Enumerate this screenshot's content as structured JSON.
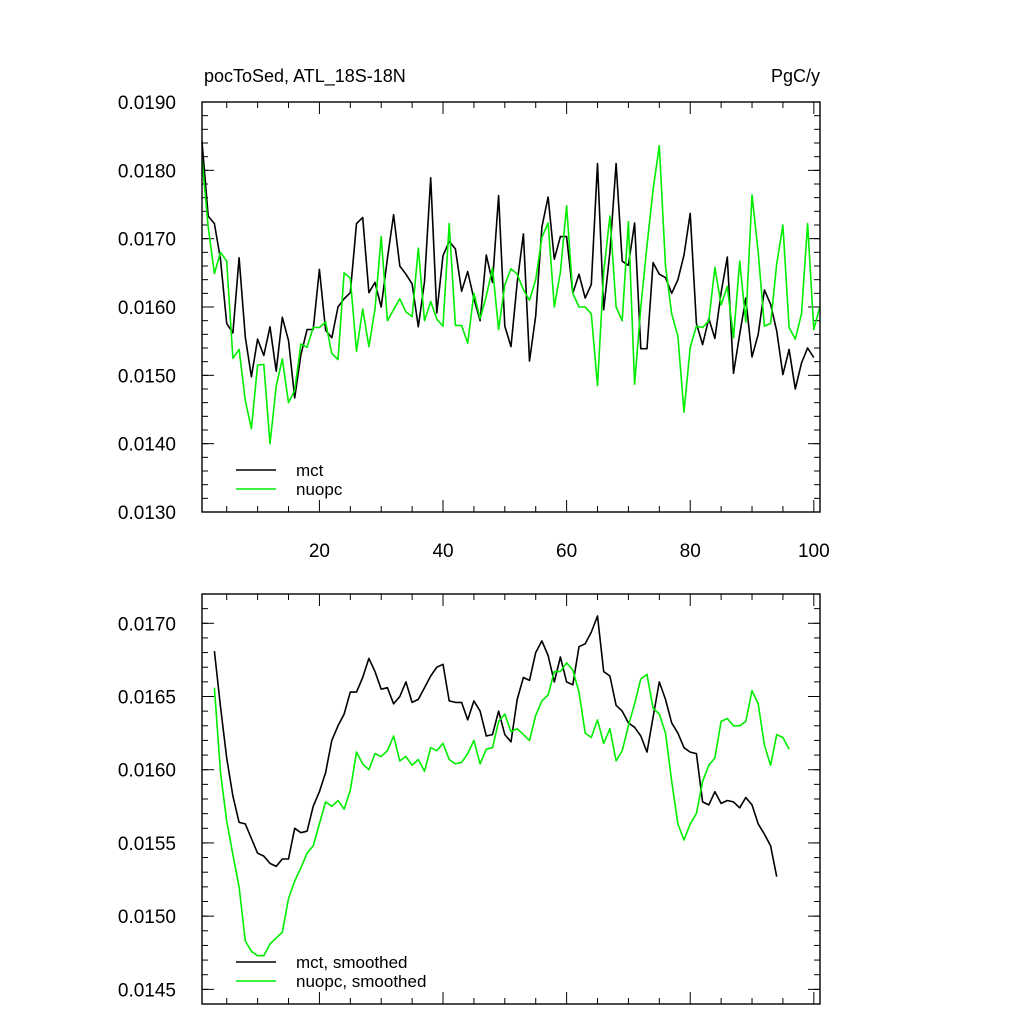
{
  "chart_data": [
    {
      "type": "line",
      "title": "pocToSed, ATL_18S-18N",
      "units": "PgC/y",
      "xlim": [
        1,
        101
      ],
      "ylim": [
        0.013,
        0.019
      ],
      "x_ticks": [
        20,
        40,
        60,
        80,
        100
      ],
      "y_ticks": [
        "0.0190",
        "0.0180",
        "0.0170",
        "0.0160",
        "0.0150",
        "0.0140",
        "0.0130"
      ],
      "y_tick_values": [
        0.019,
        0.018,
        0.017,
        0.016,
        0.015,
        0.014,
        0.013
      ],
      "legend_position": "bottom-left",
      "x_start": 1,
      "series": [
        {
          "name": "mct",
          "color": "#000000",
          "values": [
            0.01842,
            0.01733,
            0.01722,
            0.0167,
            0.01576,
            0.01562,
            0.01672,
            0.01556,
            0.01498,
            0.01553,
            0.01529,
            0.01571,
            0.01506,
            0.01585,
            0.01551,
            0.01467,
            0.0153,
            0.01567,
            0.01567,
            0.01655,
            0.01566,
            0.01555,
            0.016,
            0.01612,
            0.01621,
            0.01722,
            0.01731,
            0.01621,
            0.01636,
            0.016,
            0.01671,
            0.01735,
            0.0166,
            0.01648,
            0.01634,
            0.01571,
            0.01637,
            0.01789,
            0.01591,
            0.01675,
            0.01696,
            0.01685,
            0.01623,
            0.01652,
            0.01612,
            0.0158,
            0.01676,
            0.01636,
            0.01763,
            0.01572,
            0.01542,
            0.01636,
            0.01707,
            0.01521,
            0.01587,
            0.01717,
            0.01761,
            0.0167,
            0.01703,
            0.01703,
            0.0162,
            0.01648,
            0.01613,
            0.01633,
            0.0181,
            0.01596,
            0.0168,
            0.0181,
            0.01667,
            0.01661,
            0.01723,
            0.01539,
            0.01539,
            0.01665,
            0.01648,
            0.01643,
            0.0162,
            0.0164,
            0.01676,
            0.01737,
            0.01576,
            0.01545,
            0.01583,
            0.01554,
            0.01621,
            0.01673,
            0.01503,
            0.0156,
            0.01613,
            0.01527,
            0.0156,
            0.01625,
            0.01604,
            0.01565,
            0.01501,
            0.01538,
            0.0148,
            0.01518,
            0.0154,
            0.01526
          ]
        },
        {
          "name": "nuopc",
          "color": "#00ee00",
          "values": [
            0.01817,
            0.01717,
            0.01649,
            0.0168,
            0.01667,
            0.01525,
            0.01538,
            0.01463,
            0.01422,
            0.01515,
            0.01516,
            0.014,
            0.01484,
            0.01524,
            0.0146,
            0.01478,
            0.01546,
            0.01541,
            0.0157,
            0.0157,
            0.01578,
            0.01532,
            0.01523,
            0.0165,
            0.01642,
            0.01535,
            0.01597,
            0.01542,
            0.01597,
            0.01703,
            0.0158,
            0.01596,
            0.01612,
            0.01593,
            0.01586,
            0.01686,
            0.0158,
            0.01608,
            0.01582,
            0.01572,
            0.01722,
            0.01573,
            0.01573,
            0.01547,
            0.0162,
            0.01583,
            0.01616,
            0.01657,
            0.01567,
            0.01632,
            0.01656,
            0.01648,
            0.01625,
            0.0161,
            0.0164,
            0.01702,
            0.01723,
            0.016,
            0.01651,
            0.01748,
            0.0162,
            0.016,
            0.016,
            0.0159,
            0.01485,
            0.01651,
            0.01733,
            0.016,
            0.0158,
            0.01725,
            0.01487,
            0.016,
            0.0169,
            0.01772,
            0.01836,
            0.0166,
            0.0159,
            0.01557,
            0.01446,
            0.01541,
            0.01572,
            0.0157,
            0.0158,
            0.01658,
            0.01603,
            0.0163,
            0.01555,
            0.01667,
            0.01578,
            0.01764,
            0.0168,
            0.01572,
            0.01576,
            0.01663,
            0.0172,
            0.0157,
            0.01553,
            0.0159,
            0.01722,
            0.01567,
            0.01601
          ]
        }
      ]
    },
    {
      "type": "line",
      "xlim": [
        1,
        101
      ],
      "ylim": [
        0.0144,
        0.0172
      ],
      "y_ticks": [
        "0.0170",
        "0.0165",
        "0.0160",
        "0.0155",
        "0.0150",
        "0.0145"
      ],
      "y_tick_values": [
        0.017,
        0.0165,
        0.016,
        0.0155,
        0.015,
        0.0145
      ],
      "x_ticks_unlabeled": [
        20,
        40,
        60,
        80,
        100
      ],
      "legend_position": "bottom-left",
      "x_start": 3,
      "series": [
        {
          "name": "mct, smoothed",
          "color": "#000000",
          "values": [
            0.01681,
            0.01643,
            0.01608,
            0.01582,
            0.01564,
            0.01563,
            0.01553,
            0.01543,
            0.01541,
            0.01536,
            0.01534,
            0.01539,
            0.01539,
            0.0156,
            0.01557,
            0.01558,
            0.01575,
            0.01585,
            0.01598,
            0.0162,
            0.0163,
            0.01638,
            0.01653,
            0.01653,
            0.01663,
            0.01676,
            0.01667,
            0.01655,
            0.01656,
            0.01645,
            0.0165,
            0.0166,
            0.01646,
            0.01648,
            0.01656,
            0.01664,
            0.0167,
            0.01672,
            0.01647,
            0.01646,
            0.01646,
            0.01634,
            0.01647,
            0.0164,
            0.01623,
            0.01624,
            0.0164,
            0.01624,
            0.01619,
            0.01648,
            0.01663,
            0.01661,
            0.0168,
            0.01688,
            0.01678,
            0.0166,
            0.01677,
            0.0166,
            0.01658,
            0.01684,
            0.01686,
            0.01694,
            0.01705,
            0.01667,
            0.01664,
            0.01644,
            0.0164,
            0.01632,
            0.01629,
            0.01623,
            0.01612,
            0.01636,
            0.0166,
            0.01648,
            0.01632,
            0.01625,
            0.01615,
            0.01612,
            0.01611,
            0.01578,
            0.01576,
            0.01585,
            0.01577,
            0.01579,
            0.01578,
            0.01574,
            0.01581,
            0.01576,
            0.01563,
            0.01556,
            0.01548,
            0.01527
          ]
        },
        {
          "name": "nuopc, smoothed",
          "color": "#00ee00",
          "values": [
            0.01656,
            0.01598,
            0.01565,
            0.01542,
            0.0152,
            0.01483,
            0.01476,
            0.01473,
            0.01473,
            0.01481,
            0.01485,
            0.01489,
            0.01512,
            0.01524,
            0.01533,
            0.01543,
            0.01548,
            0.01563,
            0.01578,
            0.01575,
            0.01579,
            0.01573,
            0.01586,
            0.01612,
            0.01604,
            0.016,
            0.01611,
            0.01609,
            0.01613,
            0.01623,
            0.01606,
            0.01609,
            0.01603,
            0.01607,
            0.01599,
            0.01615,
            0.01613,
            0.01618,
            0.01607,
            0.01604,
            0.01605,
            0.01611,
            0.0162,
            0.01604,
            0.01614,
            0.01615,
            0.01633,
            0.01638,
            0.01626,
            0.01628,
            0.01624,
            0.0162,
            0.01637,
            0.01647,
            0.01651,
            0.01667,
            0.01667,
            0.01673,
            0.01668,
            0.01653,
            0.01625,
            0.01622,
            0.01634,
            0.01618,
            0.01628,
            0.01606,
            0.01613,
            0.0163,
            0.01645,
            0.01662,
            0.01665,
            0.01642,
            0.01638,
            0.01625,
            0.01592,
            0.01563,
            0.01552,
            0.01563,
            0.0157,
            0.01592,
            0.01603,
            0.01608,
            0.01633,
            0.01635,
            0.0163,
            0.0163,
            0.01633,
            0.01654,
            0.01645,
            0.01617,
            0.01603,
            0.01624,
            0.01622,
            0.01614
          ]
        }
      ]
    }
  ]
}
